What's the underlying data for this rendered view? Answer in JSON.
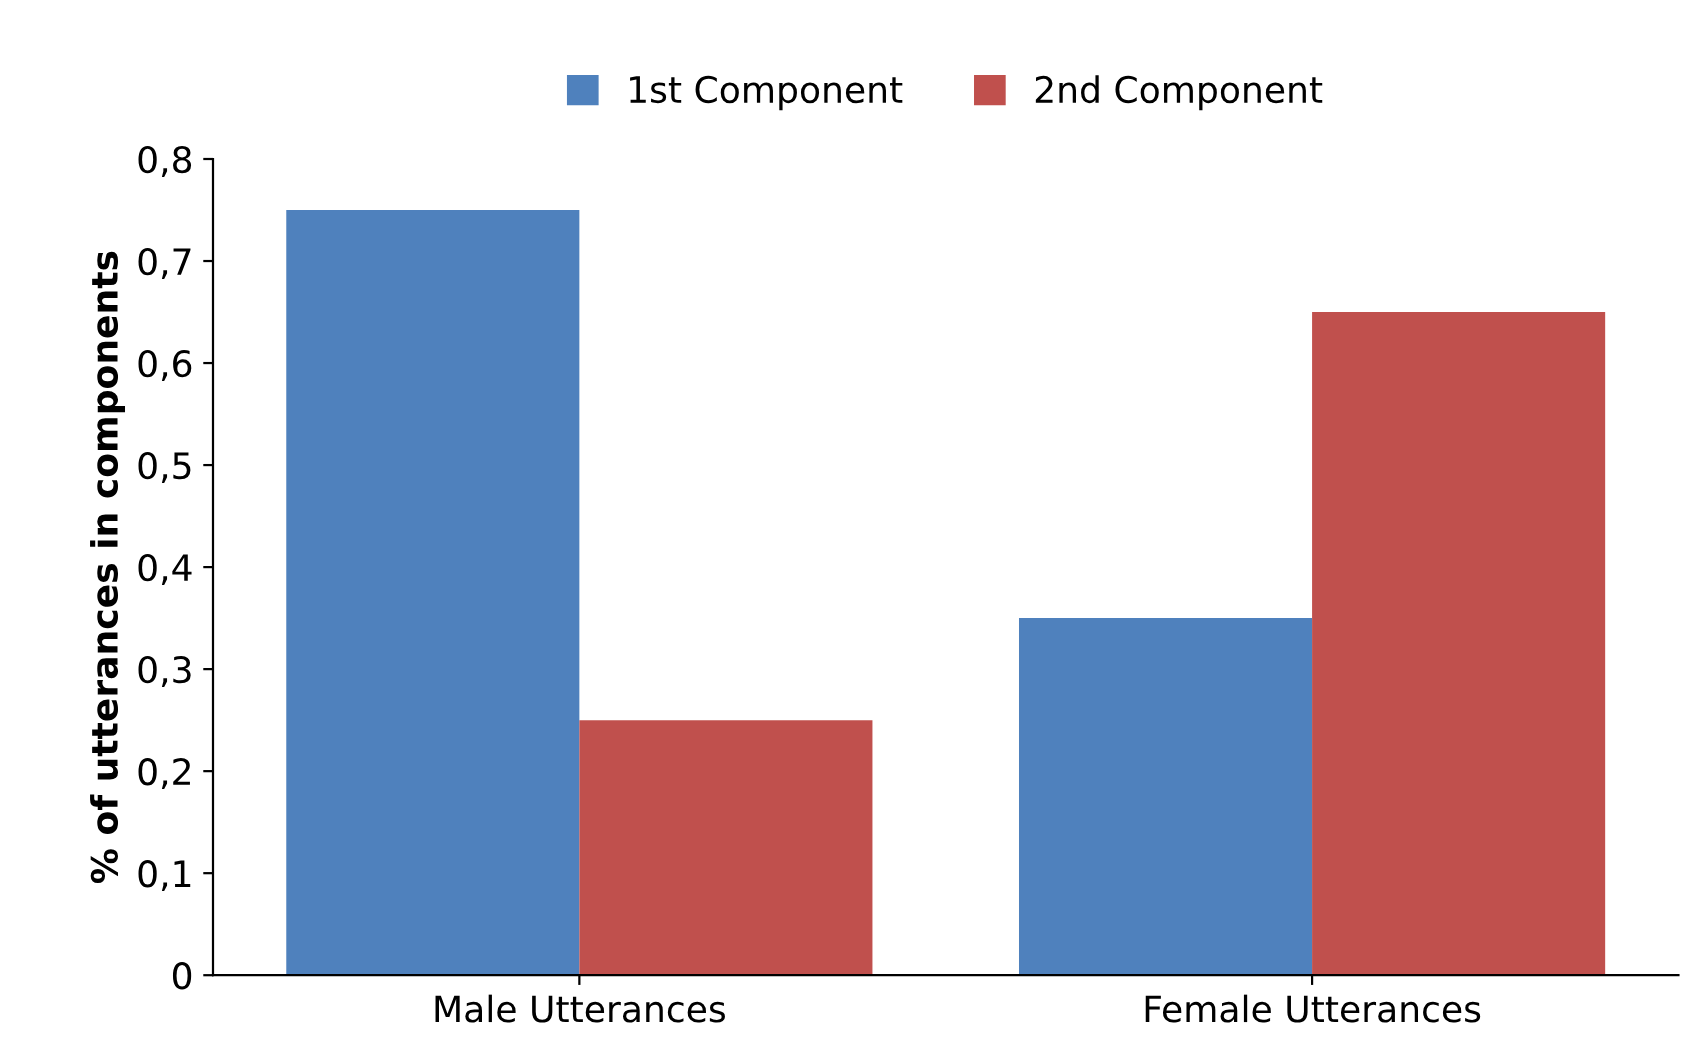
{
  "chart_data": {
    "type": "bar",
    "ylabel": "% of utterances in components",
    "categories": [
      "Male Utterances",
      "Female Utterances"
    ],
    "series": [
      {
        "name": "1st Component",
        "color": "#4f81bd",
        "values": [
          0.75,
          0.35
        ]
      },
      {
        "name": "2nd Component",
        "color": "#c0504d",
        "values": [
          0.25,
          0.65
        ]
      }
    ],
    "ylim": [
      0,
      0.8
    ],
    "yticks": [
      {
        "value": 0,
        "label": "0"
      },
      {
        "value": 0.1,
        "label": "0,1"
      },
      {
        "value": 0.2,
        "label": "0,2"
      },
      {
        "value": 0.3,
        "label": "0,3"
      },
      {
        "value": 0.4,
        "label": "0,4"
      },
      {
        "value": 0.5,
        "label": "0,5"
      },
      {
        "value": 0.6,
        "label": "0,6"
      },
      {
        "value": 0.7,
        "label": "0,7"
      },
      {
        "value": 0.8,
        "label": "0,8"
      }
    ],
    "grid": false,
    "legend": "top"
  }
}
